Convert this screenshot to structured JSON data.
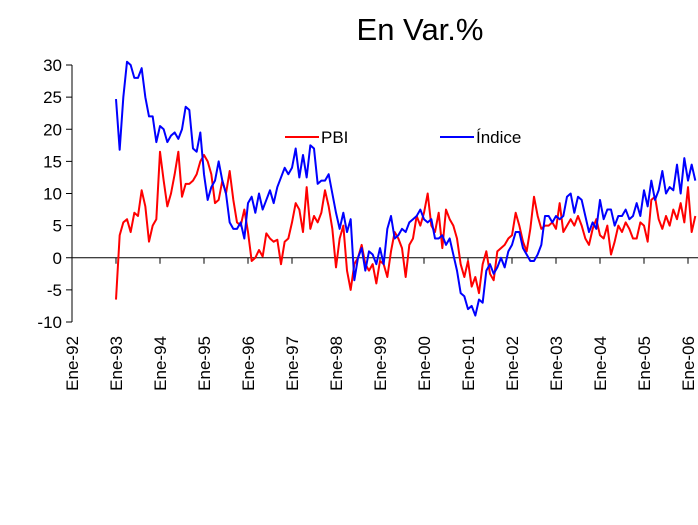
{
  "chart_data": {
    "type": "line",
    "title": "En Var.%",
    "categories": [
      "Ene-92",
      null,
      null,
      null,
      null,
      null,
      null,
      null,
      null,
      null,
      null,
      null,
      "Ene-93",
      null,
      null,
      null,
      null,
      null,
      null,
      null,
      null,
      null,
      null,
      null,
      "Ene-94",
      null,
      null,
      null,
      null,
      null,
      null,
      null,
      null,
      null,
      null,
      null,
      "Ene-95",
      null,
      null,
      null,
      null,
      null,
      null,
      null,
      null,
      null,
      null,
      null,
      "Ene-96",
      null,
      null,
      null,
      null,
      null,
      null,
      null,
      null,
      null,
      null,
      null,
      "Ene-97",
      null,
      null,
      null,
      null,
      null,
      null,
      null,
      null,
      null,
      null,
      null,
      "Ene-98",
      null,
      null,
      null,
      null,
      null,
      null,
      null,
      null,
      null,
      null,
      null,
      "Ene-99",
      null,
      null,
      null,
      null,
      null,
      null,
      null,
      null,
      null,
      null,
      null,
      "Ene-00",
      null,
      null,
      null,
      null,
      null,
      null,
      null,
      null,
      null,
      null,
      null,
      "Ene-01",
      null,
      null,
      null,
      null,
      null,
      null,
      null,
      null,
      null,
      null,
      null,
      "Ene-02",
      null,
      null,
      null,
      null,
      null,
      null,
      null,
      null,
      null,
      null,
      null,
      "Ene-03",
      null,
      null,
      null,
      null,
      null,
      null,
      null,
      null,
      null,
      null,
      null,
      "Ene-04",
      null,
      null,
      null,
      null,
      null,
      null,
      null,
      null,
      null,
      null,
      null,
      "Ene-05",
      null,
      null,
      null,
      null,
      null,
      null,
      null,
      null,
      null,
      null,
      null,
      "Ene-06",
      null,
      null
    ],
    "series": [
      {
        "name": "PBI",
        "color": "#ff0000",
        "values": [
          null,
          null,
          null,
          null,
          null,
          null,
          null,
          null,
          null,
          null,
          null,
          null,
          -6.5,
          3.5,
          5.5,
          6,
          4,
          7,
          6.5,
          10.5,
          8,
          2.5,
          5,
          6,
          16.5,
          12,
          8,
          10,
          13,
          16.5,
          9.5,
          11.5,
          11.5,
          12,
          13,
          15,
          16,
          15,
          13,
          8.5,
          9,
          12,
          10,
          13.5,
          9,
          5.5,
          5,
          7.5,
          4,
          -0.5,
          0,
          1.2,
          0.2,
          3.8,
          3,
          2.5,
          2.8,
          -1,
          2.5,
          3,
          5.5,
          8.5,
          7.5,
          4,
          11,
          4.5,
          6.5,
          5.5,
          7,
          10.5,
          8,
          4.5,
          -1.5,
          3,
          5,
          -2,
          -5,
          -1,
          0,
          2,
          -1,
          -2,
          -1,
          -4,
          -0.5,
          -1,
          -3,
          1,
          4,
          3,
          1.5,
          -3,
          2,
          3,
          6.5,
          5,
          7,
          10,
          5,
          4,
          7,
          1.5,
          7.5,
          6,
          5,
          3,
          -1,
          -3,
          -0.5,
          -4.5,
          -3,
          -5.5,
          -1,
          1,
          -2.5,
          -3.5,
          1,
          1.5,
          2,
          3,
          3.5,
          7,
          5,
          2.5,
          1,
          4.5,
          9.5,
          6.5,
          4.5,
          5,
          5,
          5.5,
          4.5,
          8.5,
          4,
          5,
          6,
          5,
          6.5,
          5,
          3,
          2,
          4.5,
          6,
          3.5,
          3,
          5,
          0.5,
          2.5,
          5,
          4,
          5.5,
          4.5,
          3,
          3,
          5.5,
          5,
          2.5,
          9,
          9.5,
          6,
          4.5,
          6.5,
          5,
          7.5,
          6,
          8.5,
          5.5,
          11,
          4,
          6.5
        ]
      },
      {
        "name": "Índice",
        "color": "#0000ff",
        "values": [
          null,
          null,
          null,
          null,
          null,
          null,
          null,
          null,
          null,
          null,
          null,
          null,
          24.7,
          16.8,
          25,
          30.5,
          30,
          28,
          28,
          29.5,
          25,
          22,
          22,
          18,
          20.5,
          20,
          18,
          19,
          19.5,
          18.5,
          20,
          23.5,
          23,
          17,
          16.5,
          19.5,
          13,
          9,
          11,
          12,
          15,
          12,
          10,
          5.5,
          4.5,
          4.5,
          5.5,
          3,
          8.5,
          9.5,
          7,
          10,
          7.5,
          9,
          10.5,
          8.5,
          11,
          12.5,
          14,
          13,
          14,
          17,
          12.5,
          16,
          12.5,
          17.5,
          17,
          11.5,
          12,
          12,
          13,
          10,
          7,
          4.5,
          7,
          4,
          6,
          -3.5,
          0,
          1.5,
          -2,
          1,
          0.5,
          -1,
          1.5,
          -1,
          4.5,
          6.5,
          3,
          3.5,
          4.5,
          4,
          5.5,
          6,
          6.5,
          7.5,
          6,
          5.5,
          6,
          3,
          3,
          3.5,
          2,
          3,
          0.5,
          -2,
          -5.5,
          -6,
          -8,
          -7.5,
          -9,
          -6.5,
          -7,
          -2,
          -1,
          -2.5,
          -1.5,
          0,
          -1.5,
          1,
          2,
          4,
          4,
          1.5,
          0.5,
          -0.5,
          -0.5,
          0.5,
          2,
          6.5,
          6.5,
          5.5,
          6.5,
          6,
          6.5,
          9.5,
          10,
          7,
          9.5,
          9,
          6.5,
          4,
          5.5,
          4.5,
          9,
          6,
          7.5,
          7.5,
          5,
          6.5,
          6.5,
          7.5,
          6,
          6.5,
          8.5,
          6.5,
          10.5,
          8,
          12,
          9,
          10.5,
          13.5,
          10,
          11,
          10.5,
          14.5,
          10,
          15.5,
          12,
          14.5,
          12
        ]
      }
    ],
    "ylim": [
      -10,
      30
    ],
    "yticks": [
      -10,
      -5,
      0,
      5,
      10,
      15,
      20,
      25,
      30
    ]
  }
}
